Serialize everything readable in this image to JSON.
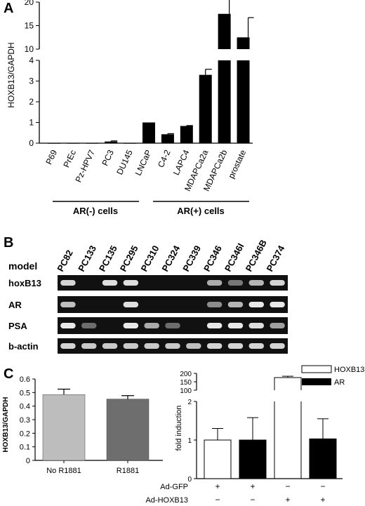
{
  "panels": {
    "a": {
      "letter": "A"
    },
    "b": {
      "letter": "B"
    },
    "c": {
      "letter": "C"
    }
  },
  "chart_data": [
    {
      "type": "bar",
      "panel": "A",
      "ylabel": "HOXB13/GAPDH",
      "categories": [
        "P69",
        "PrEc",
        "Pz-HPV7",
        "PC3",
        "DU145",
        "LNCaP",
        "C4-2",
        "LAPC4",
        "MDAPCa2a",
        "MDAPCa2b",
        "prostate"
      ],
      "values": [
        0.01,
        0.01,
        0.01,
        0.08,
        0.01,
        1.0,
        0.43,
        0.83,
        3.3,
        17.5,
        12.5
      ],
      "errors": [
        0,
        0,
        0,
        0.03,
        0,
        0,
        0.03,
        0.02,
        0.27,
        3.5,
        4.2
      ],
      "y_axis_break": {
        "lower": [
          0,
          4
        ],
        "upper": [
          10,
          20
        ]
      },
      "yticks_lower": [
        "0",
        "1",
        "2",
        "3",
        "4"
      ],
      "yticks_upper": [
        "10",
        "15",
        "20"
      ],
      "bar_color": "#000000",
      "groups": [
        {
          "label": "AR(-) cells",
          "members": [
            "P69",
            "PrEc",
            "Pz-HPV7",
            "PC3",
            "DU145"
          ]
        },
        {
          "label": "AR(+) cells",
          "members": [
            "LNCaP",
            "C4-2",
            "LAPC4",
            "MDAPCa2a",
            "MDAPCa2b",
            "prostate"
          ]
        }
      ]
    },
    {
      "type": "bar",
      "panel": "C-left",
      "ylabel": "HOXB13/GAPDH",
      "categories": [
        "No R1881",
        "R1881"
      ],
      "values": [
        0.485,
        0.452
      ],
      "errors": [
        0.04,
        0.025
      ],
      "ylim": [
        0,
        0.6
      ],
      "yticks": [
        "0",
        "0.1",
        "0.2",
        "0.3",
        "0.4",
        "0.5",
        "0.6"
      ],
      "colors": [
        "#bdbdbd",
        "#6e6e6e"
      ]
    },
    {
      "type": "bar",
      "panel": "C-right",
      "ylabel": "fold induction",
      "legend": {
        "position": "top-right",
        "entries": [
          {
            "name": "HOXB13",
            "color": "#ffffff"
          },
          {
            "name": "AR",
            "color": "#000000"
          }
        ]
      },
      "series": [
        {
          "name": "HOXB13",
          "values": [
            1.0,
            1.0,
            175.0,
            1.03
          ],
          "errors": [
            0.3,
            0.58,
            8.0,
            0.52
          ]
        }
      ],
      "bar_colors": [
        "#ffffff",
        "#000000",
        "#ffffff",
        "#000000"
      ],
      "y_axis_break": {
        "lower": [
          0,
          2
        ],
        "upper": [
          100,
          200
        ]
      },
      "yticks_lower": [
        "0",
        "1",
        "2"
      ],
      "yticks_upper": [
        "100",
        "150",
        "200"
      ],
      "conditions": [
        {
          "label": "Ad-GFP",
          "values": [
            "+",
            "+",
            "−",
            "−"
          ]
        },
        {
          "label": "Ad-HOXB13",
          "values": [
            "−",
            "−",
            "+",
            "+"
          ]
        }
      ]
    }
  ],
  "gel": {
    "model_label": "model",
    "lanes": [
      "PC82",
      "PC133",
      "PC135",
      "PC295",
      "PC310",
      "PC324",
      "PC339",
      "PC346",
      "PC346I",
      "PC346B",
      "PC374"
    ],
    "rows": [
      {
        "label": "hoxB13",
        "intensity": [
          0.85,
          0,
          0.9,
          0.9,
          0,
          0,
          0,
          0.65,
          0.4,
          0.7,
          0.85
        ]
      },
      {
        "label": "AR",
        "intensity": [
          0.75,
          0,
          0,
          0.9,
          0,
          0,
          0,
          0.5,
          0.7,
          0.95,
          0.95
        ]
      },
      {
        "label": "PSA",
        "intensity": [
          0.95,
          0.35,
          0,
          0.95,
          0.65,
          0.35,
          0,
          0.95,
          0.95,
          0.9,
          0.6
        ]
      },
      {
        "label": "b-actin",
        "intensity": [
          0.85,
          0.8,
          0.8,
          0.8,
          0.8,
          0.8,
          0.75,
          0.85,
          0.85,
          0.85,
          0.85
        ]
      }
    ]
  }
}
